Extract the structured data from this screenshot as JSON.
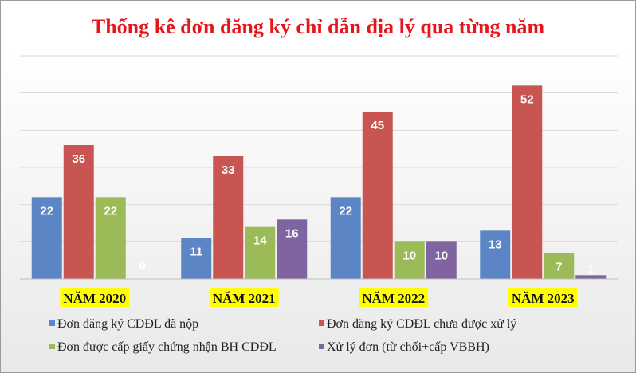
{
  "chart_data": {
    "type": "bar",
    "title": "Thống kê đơn đăng ký chỉ dẫn địa lý qua từng năm",
    "categories": [
      "NĂM 2020",
      "NĂM 2021",
      "NĂM 2022",
      "NĂM 2023"
    ],
    "series": [
      {
        "name": "Đơn đăng ký CDĐL đã nộp",
        "values": [
          22,
          11,
          22,
          13
        ],
        "color": "#5b85c4"
      },
      {
        "name": "Đơn đăng ký CDĐL chưa được xử lý",
        "values": [
          36,
          33,
          45,
          52
        ],
        "color": "#c85552"
      },
      {
        "name": "Đơn được cấp giấy chứng nhận BH CDĐL",
        "values": [
          22,
          14,
          10,
          7
        ],
        "color": "#9bbb59"
      },
      {
        "name": "Xử lý đơn (từ chối+cấp VBBH)",
        "values": [
          0,
          16,
          10,
          1
        ],
        "color": "#8064a2"
      }
    ],
    "ylim": [
      0,
      60
    ],
    "grid": true,
    "legend_position": "bottom",
    "data_labels": true,
    "title_color": "#e8141b",
    "category_highlight": "#ffff00",
    "data_label_color": "#ffffff",
    "zero_label_color": "#ffffff"
  }
}
